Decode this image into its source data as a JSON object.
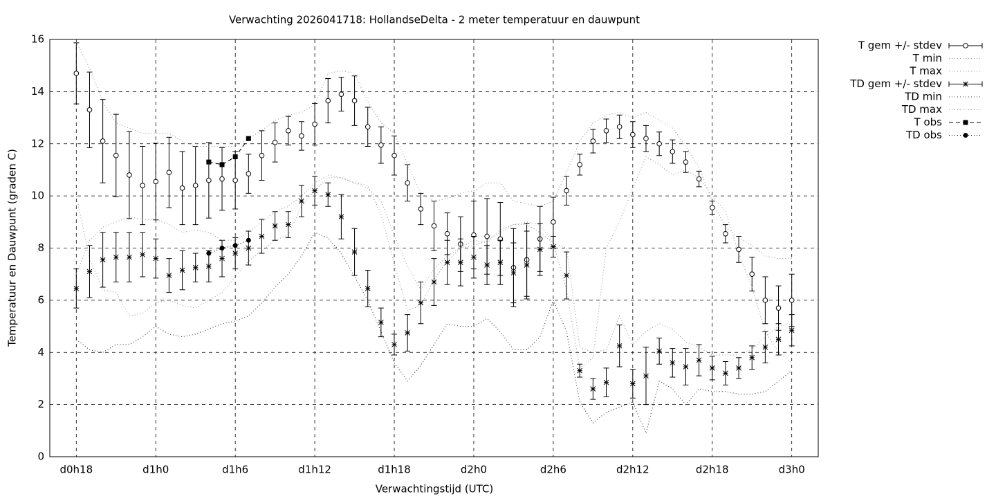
{
  "chart_data": {
    "type": "line",
    "title": "Verwachting 2026041718: HollandseDelta - 2 meter temperatuur en dauwpunt",
    "x_label": "Verwachtingstijd (UTC)",
    "y_label": "Temperatuur en Dauwpunt (graden C)",
    "x": [
      18,
      19,
      20,
      21,
      22,
      23,
      24,
      25,
      26,
      27,
      28,
      29,
      30,
      31,
      32,
      33,
      34,
      35,
      36,
      37,
      38,
      39,
      40,
      41,
      42,
      43,
      44,
      45,
      46,
      47,
      48,
      49,
      50,
      51,
      52,
      53,
      54,
      55,
      56,
      57,
      58,
      59,
      60,
      61,
      62,
      63,
      64,
      65,
      66,
      67,
      68,
      69,
      70,
      71,
      72
    ],
    "xlim": [
      16,
      74
    ],
    "xticks": [
      {
        "value": 18,
        "label": "d0h18"
      },
      {
        "value": 24,
        "label": "d1h0"
      },
      {
        "value": 30,
        "label": "d1h6"
      },
      {
        "value": 36,
        "label": "d1h12"
      },
      {
        "value": 42,
        "label": "d1h18"
      },
      {
        "value": 48,
        "label": "d2h0"
      },
      {
        "value": 54,
        "label": "d2h6"
      },
      {
        "value": 60,
        "label": "d2h12"
      },
      {
        "value": 66,
        "label": "d2h18"
      },
      {
        "value": 72,
        "label": "d3h0"
      }
    ],
    "ylim": [
      0,
      16
    ],
    "yticks": [
      0,
      2,
      4,
      6,
      8,
      10,
      12,
      14,
      16
    ],
    "grid": true,
    "legend": "outside-right",
    "series": [
      {
        "name": "T gem +/- stdev",
        "color": "#000000",
        "style": "errorbar",
        "marker": "circle",
        "values": [
          14.7,
          13.3,
          12.1,
          11.55,
          10.8,
          10.4,
          10.55,
          10.9,
          10.3,
          10.4,
          10.6,
          10.65,
          10.6,
          10.85,
          11.55,
          12.05,
          12.5,
          12.3,
          12.75,
          13.65,
          13.9,
          13.65,
          12.65,
          11.95,
          11.55,
          10.5,
          9.5,
          8.85,
          8.55,
          8.15,
          8.5,
          8.45,
          8.35,
          7.25,
          7.55,
          8.35,
          9.0,
          10.2,
          11.2,
          12.1,
          12.5,
          12.65,
          12.35,
          12.2,
          12.0,
          11.7,
          11.3,
          10.65,
          9.55,
          8.55,
          7.95,
          7.0,
          6.0,
          5.7,
          6.0
        ],
        "errors": [
          1.17,
          1.45,
          1.6,
          1.58,
          1.67,
          1.5,
          1.47,
          1.35,
          1.4,
          1.5,
          1.45,
          1.2,
          1.1,
          0.75,
          0.95,
          0.75,
          0.55,
          0.55,
          0.8,
          0.85,
          0.65,
          0.95,
          0.75,
          0.7,
          0.75,
          0.7,
          0.6,
          0.95,
          0.8,
          1.05,
          1.3,
          1.45,
          1.4,
          1.5,
          1.4,
          1.25,
          0.95,
          0.55,
          0.4,
          0.45,
          0.45,
          0.45,
          0.5,
          0.5,
          0.45,
          0.45,
          0.4,
          0.3,
          0.25,
          0.35,
          0.5,
          0.65,
          0.9,
          0.85,
          1.0
        ]
      },
      {
        "name": "T min",
        "color": "#999999",
        "style": "dotted",
        "values": [
          10.0,
          7.6,
          6.4,
          6.3,
          5.4,
          5.5,
          5.9,
          6.0,
          5.8,
          5.7,
          6.0,
          6.3,
          6.9,
          7.5,
          7.9,
          8.3,
          8.5,
          9.6,
          10.2,
          10.7,
          10.7,
          10.5,
          10.4,
          9.3,
          7.4,
          5.6,
          5.8,
          6.8,
          7.5,
          8.0,
          8.3,
          8.2,
          8.7,
          8.9,
          9.0,
          8.9,
          8.2,
          6.4,
          3.4,
          3.8,
          8.0,
          9.0,
          10.3,
          11.5,
          11.2,
          10.8,
          11.0,
          10.7,
          10.0,
          9.4,
          7.8,
          6.5,
          4.8,
          4.0,
          3.6
        ]
      },
      {
        "name": "T max",
        "color": "#999999",
        "style": "dotted",
        "values": [
          15.9,
          14.9,
          13.6,
          12.8,
          12.6,
          12.4,
          12.4,
          12.4,
          12.1,
          11.9,
          11.9,
          11.9,
          11.9,
          12.2,
          12.5,
          12.9,
          13.1,
          13.2,
          13.5,
          14.7,
          14.8,
          14.7,
          13.6,
          12.8,
          12.4,
          11.2,
          10.1,
          9.8,
          9.9,
          10.1,
          10.2,
          10.5,
          10.5,
          9.8,
          9.7,
          9.6,
          9.8,
          10.9,
          12.1,
          12.8,
          13.1,
          13.2,
          13.0,
          13.2,
          12.9,
          12.6,
          11.9,
          11.1,
          9.8,
          8.8,
          8.4,
          8.1,
          7.7,
          7.6,
          7.6
        ]
      },
      {
        "name": "TD gem +/- stdev",
        "color": "#000000",
        "style": "errorbar",
        "marker": "asterisk",
        "values": [
          6.45,
          7.1,
          7.55,
          7.65,
          7.65,
          7.75,
          7.6,
          6.95,
          7.15,
          7.25,
          7.3,
          7.6,
          7.8,
          8.0,
          8.45,
          8.85,
          8.9,
          9.8,
          10.2,
          10.05,
          9.2,
          7.85,
          6.45,
          5.15,
          4.3,
          4.75,
          5.9,
          6.7,
          7.45,
          7.45,
          7.65,
          7.35,
          7.45,
          7.05,
          7.35,
          7.95,
          8.05,
          6.95,
          3.3,
          2.6,
          2.85,
          4.25,
          2.8,
          3.1,
          4.05,
          3.6,
          3.45,
          3.7,
          3.4,
          3.2,
          3.4,
          3.8,
          4.2,
          4.5,
          4.85
        ],
        "errors": [
          0.75,
          1.0,
          1.05,
          0.95,
          0.95,
          0.85,
          0.75,
          0.65,
          0.75,
          0.55,
          0.6,
          0.7,
          0.6,
          0.65,
          0.65,
          0.55,
          0.5,
          0.6,
          0.55,
          0.45,
          0.85,
          0.9,
          0.7,
          0.55,
          0.4,
          0.7,
          0.8,
          0.9,
          0.85,
          0.9,
          0.8,
          0.75,
          0.85,
          1.15,
          1.3,
          1.0,
          0.4,
          0.9,
          0.25,
          0.4,
          0.55,
          0.8,
          0.55,
          1.1,
          0.5,
          0.55,
          0.7,
          0.6,
          0.45,
          0.45,
          0.4,
          0.45,
          0.6,
          0.6,
          0.6
        ]
      },
      {
        "name": "TD min",
        "color": "#333333",
        "style": "dotted",
        "values": [
          4.5,
          4.1,
          4.0,
          4.3,
          4.3,
          4.6,
          5.0,
          4.7,
          4.6,
          4.7,
          4.9,
          5.1,
          5.2,
          5.4,
          5.9,
          6.5,
          7.0,
          7.7,
          8.6,
          8.4,
          7.8,
          6.9,
          6.0,
          4.8,
          3.6,
          2.9,
          3.5,
          4.3,
          5.1,
          5.0,
          5.0,
          5.3,
          4.8,
          4.1,
          4.1,
          4.6,
          6.0,
          4.8,
          2.1,
          1.3,
          1.7,
          1.9,
          2.1,
          0.9,
          2.9,
          2.6,
          2.0,
          2.6,
          2.5,
          2.5,
          2.4,
          2.4,
          2.5,
          2.9,
          3.3
        ]
      },
      {
        "name": "TD max",
        "color": "#999999",
        "style": "dotted",
        "values": [
          7.0,
          8.3,
          8.8,
          9.0,
          9.2,
          9.1,
          9.1,
          8.9,
          8.6,
          8.7,
          8.6,
          8.3,
          8.3,
          8.6,
          9.0,
          9.4,
          9.6,
          10.0,
          10.5,
          10.8,
          10.7,
          10.5,
          10.3,
          9.8,
          8.5,
          7.3,
          6.4,
          7.2,
          7.7,
          8.0,
          8.1,
          8.3,
          8.6,
          8.9,
          8.9,
          8.6,
          8.2,
          8.0,
          4.2,
          4.0,
          4.1,
          5.4,
          4.3,
          4.8,
          5.1,
          4.9,
          4.4,
          4.2,
          3.9,
          3.9,
          3.9,
          4.1,
          4.6,
          5.0,
          5.1
        ]
      },
      {
        "name": "T obs",
        "color": "#000000",
        "style": "dashed",
        "marker": "square",
        "values": [
          null,
          null,
          null,
          null,
          null,
          null,
          null,
          null,
          null,
          null,
          11.3,
          11.2,
          11.5,
          12.2,
          null,
          null,
          null,
          null,
          null,
          null,
          null,
          null,
          null,
          null,
          null,
          null,
          null,
          null,
          null,
          null,
          null,
          null,
          null,
          null,
          null,
          null,
          null,
          null,
          null,
          null,
          null,
          null,
          null,
          null,
          null,
          null,
          null,
          null,
          null,
          null,
          null,
          null,
          null,
          null,
          null
        ]
      },
      {
        "name": "TD obs",
        "color": "#000000",
        "style": "dotted",
        "marker": "dot",
        "values": [
          null,
          null,
          null,
          null,
          null,
          null,
          null,
          null,
          null,
          null,
          7.8,
          8.0,
          8.1,
          8.3,
          null,
          null,
          null,
          null,
          null,
          null,
          null,
          null,
          null,
          null,
          null,
          null,
          null,
          null,
          null,
          null,
          null,
          null,
          null,
          null,
          null,
          null,
          null,
          null,
          null,
          null,
          null,
          null,
          null,
          null,
          null,
          null,
          null,
          null,
          null,
          null,
          null,
          null,
          null,
          null,
          null
        ]
      }
    ]
  }
}
